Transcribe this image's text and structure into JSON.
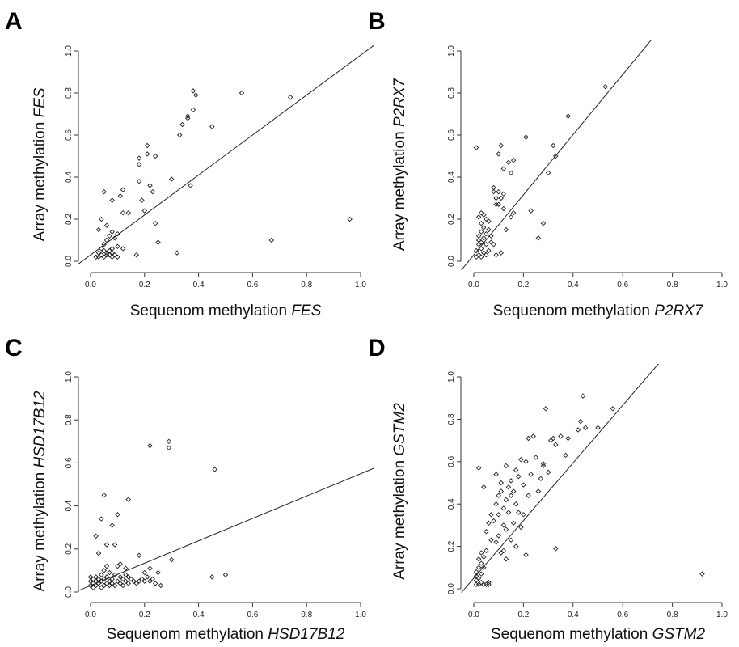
{
  "chart_data": [
    {
      "type": "scatter",
      "panel_label": "A",
      "xlabel_prefix": "Sequenom methylation ",
      "gene": "FES",
      "ylabel_prefix": "Array methylation ",
      "xlim": [
        0,
        1
      ],
      "ylim": [
        0,
        1
      ],
      "xticks": [
        "0.0",
        "0.2",
        "0.4",
        "0.6",
        "0.8",
        "1.0"
      ],
      "yticks": [
        "0.0",
        "0.2",
        "0.4",
        "0.6",
        "0.8",
        "1.0"
      ],
      "fit_line": {
        "intercept": 0.03,
        "slope": 0.95
      },
      "points": [
        [
          0.02,
          0.02
        ],
        [
          0.03,
          0.04
        ],
        [
          0.03,
          0.02
        ],
        [
          0.04,
          0.03
        ],
        [
          0.04,
          0.06
        ],
        [
          0.05,
          0.02
        ],
        [
          0.05,
          0.05
        ],
        [
          0.06,
          0.03
        ],
        [
          0.06,
          0.04
        ],
        [
          0.07,
          0.05
        ],
        [
          0.07,
          0.03
        ],
        [
          0.08,
          0.02
        ],
        [
          0.08,
          0.04
        ],
        [
          0.09,
          0.03
        ],
        [
          0.1,
          0.02
        ],
        [
          0.05,
          0.08
        ],
        [
          0.06,
          0.1
        ],
        [
          0.07,
          0.12
        ],
        [
          0.08,
          0.14
        ],
        [
          0.09,
          0.11
        ],
        [
          0.1,
          0.13
        ],
        [
          0.04,
          0.2
        ],
        [
          0.06,
          0.17
        ],
        [
          0.08,
          0.06
        ],
        [
          0.1,
          0.07
        ],
        [
          0.03,
          0.15
        ],
        [
          0.05,
          0.33
        ],
        [
          0.08,
          0.29
        ],
        [
          0.11,
          0.31
        ],
        [
          0.12,
          0.34
        ],
        [
          0.12,
          0.23
        ],
        [
          0.12,
          0.06
        ],
        [
          0.14,
          0.23
        ],
        [
          0.17,
          0.03
        ],
        [
          0.18,
          0.49
        ],
        [
          0.18,
          0.46
        ],
        [
          0.18,
          0.38
        ],
        [
          0.19,
          0.29
        ],
        [
          0.2,
          0.24
        ],
        [
          0.21,
          0.55
        ],
        [
          0.21,
          0.51
        ],
        [
          0.22,
          0.36
        ],
        [
          0.23,
          0.33
        ],
        [
          0.24,
          0.18
        ],
        [
          0.24,
          0.5
        ],
        [
          0.25,
          0.09
        ],
        [
          0.3,
          0.39
        ],
        [
          0.32,
          0.04
        ],
        [
          0.33,
          0.6
        ],
        [
          0.34,
          0.65
        ],
        [
          0.36,
          0.68
        ],
        [
          0.36,
          0.69
        ],
        [
          0.37,
          0.36
        ],
        [
          0.38,
          0.81
        ],
        [
          0.38,
          0.72
        ],
        [
          0.39,
          0.79
        ],
        [
          0.45,
          0.64
        ],
        [
          0.56,
          0.8
        ],
        [
          0.67,
          0.1
        ],
        [
          0.74,
          0.78
        ],
        [
          0.96,
          0.2
        ]
      ]
    },
    {
      "type": "scatter",
      "panel_label": "B",
      "xlabel_prefix": "Sequenom methylation ",
      "gene": "P2RX7",
      "ylabel_prefix": "Array methylation ",
      "xlim": [
        0,
        1
      ],
      "ylim": [
        0,
        1
      ],
      "xticks": [
        "0.0",
        "0.2",
        "0.4",
        "0.6",
        "0.8",
        "1.0"
      ],
      "yticks": [
        "0.0",
        "0.2",
        "0.4",
        "0.6",
        "0.8",
        "1.0"
      ],
      "fit_line": {
        "intercept": 0.03,
        "slope": 1.43
      },
      "points": [
        [
          0.01,
          0.02
        ],
        [
          0.01,
          0.05
        ],
        [
          0.02,
          0.03
        ],
        [
          0.02,
          0.08
        ],
        [
          0.02,
          0.1
        ],
        [
          0.02,
          0.12
        ],
        [
          0.03,
          0.02
        ],
        [
          0.03,
          0.06
        ],
        [
          0.03,
          0.09
        ],
        [
          0.03,
          0.14
        ],
        [
          0.03,
          0.18
        ],
        [
          0.04,
          0.04
        ],
        [
          0.04,
          0.11
        ],
        [
          0.04,
          0.16
        ],
        [
          0.04,
          0.22
        ],
        [
          0.05,
          0.03
        ],
        [
          0.05,
          0.08
        ],
        [
          0.05,
          0.13
        ],
        [
          0.05,
          0.2
        ],
        [
          0.06,
          0.05
        ],
        [
          0.06,
          0.15
        ],
        [
          0.06,
          0.19
        ],
        [
          0.02,
          0.21
        ],
        [
          0.03,
          0.23
        ],
        [
          0.01,
          0.54
        ],
        [
          0.07,
          0.09
        ],
        [
          0.07,
          0.12
        ],
        [
          0.08,
          0.08
        ],
        [
          0.08,
          0.35
        ],
        [
          0.08,
          0.33
        ],
        [
          0.09,
          0.3
        ],
        [
          0.09,
          0.27
        ],
        [
          0.09,
          0.03
        ],
        [
          0.1,
          0.33
        ],
        [
          0.1,
          0.51
        ],
        [
          0.1,
          0.27
        ],
        [
          0.11,
          0.55
        ],
        [
          0.11,
          0.3
        ],
        [
          0.11,
          0.04
        ],
        [
          0.12,
          0.32
        ],
        [
          0.12,
          0.44
        ],
        [
          0.12,
          0.25
        ],
        [
          0.13,
          0.15
        ],
        [
          0.14,
          0.47
        ],
        [
          0.15,
          0.42
        ],
        [
          0.15,
          0.21
        ],
        [
          0.16,
          0.48
        ],
        [
          0.16,
          0.23
        ],
        [
          0.21,
          0.59
        ],
        [
          0.23,
          0.24
        ],
        [
          0.26,
          0.11
        ],
        [
          0.28,
          0.18
        ],
        [
          0.3,
          0.42
        ],
        [
          0.32,
          0.55
        ],
        [
          0.33,
          0.5
        ],
        [
          0.38,
          0.69
        ],
        [
          0.53,
          0.83
        ]
      ]
    },
    {
      "type": "scatter",
      "panel_label": "C",
      "xlabel_prefix": "Sequenom methylation ",
      "gene": "HSD17B12",
      "ylabel_prefix": "Array methylation ",
      "xlim": [
        0,
        1
      ],
      "ylim": [
        0,
        1
      ],
      "xticks": [
        "0.0",
        "0.2",
        "0.4",
        "0.6",
        "0.8",
        "1.0"
      ],
      "yticks": [
        "0.0",
        "0.2",
        "0.4",
        "0.6",
        "0.8",
        "1.0"
      ],
      "fit_line": {
        "intercept": 0.03,
        "slope": 0.52
      },
      "points": [
        [
          0.0,
          0.03
        ],
        [
          0.0,
          0.05
        ],
        [
          0.0,
          0.07
        ],
        [
          0.01,
          0.02
        ],
        [
          0.01,
          0.04
        ],
        [
          0.01,
          0.06
        ],
        [
          0.02,
          0.03
        ],
        [
          0.02,
          0.05
        ],
        [
          0.02,
          0.07
        ],
        [
          0.03,
          0.04
        ],
        [
          0.03,
          0.06
        ],
        [
          0.04,
          0.02
        ],
        [
          0.04,
          0.05
        ],
        [
          0.04,
          0.08
        ],
        [
          0.05,
          0.03
        ],
        [
          0.05,
          0.06
        ],
        [
          0.05,
          0.1
        ],
        [
          0.06,
          0.04
        ],
        [
          0.06,
          0.07
        ],
        [
          0.06,
          0.12
        ],
        [
          0.07,
          0.03
        ],
        [
          0.07,
          0.05
        ],
        [
          0.07,
          0.09
        ],
        [
          0.08,
          0.04
        ],
        [
          0.08,
          0.06
        ],
        [
          0.09,
          0.03
        ],
        [
          0.09,
          0.08
        ],
        [
          0.1,
          0.05
        ],
        [
          0.1,
          0.12
        ],
        [
          0.11,
          0.04
        ],
        [
          0.11,
          0.07
        ],
        [
          0.12,
          0.06
        ],
        [
          0.12,
          0.03
        ],
        [
          0.13,
          0.05
        ],
        [
          0.13,
          0.08
        ],
        [
          0.14,
          0.04
        ],
        [
          0.14,
          0.07
        ],
        [
          0.15,
          0.06
        ],
        [
          0.16,
          0.05
        ],
        [
          0.17,
          0.04
        ],
        [
          0.18,
          0.05
        ],
        [
          0.18,
          0.17
        ],
        [
          0.19,
          0.06
        ],
        [
          0.2,
          0.05
        ],
        [
          0.2,
          0.09
        ],
        [
          0.21,
          0.07
        ],
        [
          0.22,
          0.11
        ],
        [
          0.22,
          0.05
        ],
        [
          0.23,
          0.06
        ],
        [
          0.24,
          0.04
        ],
        [
          0.25,
          0.09
        ],
        [
          0.26,
          0.03
        ],
        [
          0.29,
          0.7
        ],
        [
          0.29,
          0.67
        ],
        [
          0.3,
          0.15
        ],
        [
          0.22,
          0.68
        ],
        [
          0.14,
          0.43
        ],
        [
          0.1,
          0.36
        ],
        [
          0.09,
          0.22
        ],
        [
          0.05,
          0.45
        ],
        [
          0.04,
          0.34
        ],
        [
          0.02,
          0.26
        ],
        [
          0.03,
          0.18
        ],
        [
          0.06,
          0.22
        ],
        [
          0.11,
          0.13
        ],
        [
          0.13,
          0.11
        ],
        [
          0.08,
          0.31
        ],
        [
          0.46,
          0.57
        ],
        [
          0.45,
          0.07
        ],
        [
          0.5,
          0.08
        ]
      ]
    },
    {
      "type": "scatter",
      "panel_label": "D",
      "xlabel_prefix": "Sequenom methylation ",
      "gene": "GSTM2",
      "ylabel_prefix": "Array methylation ",
      "xlim": [
        0,
        1
      ],
      "ylim": [
        0,
        1
      ],
      "xticks": [
        "0.0",
        "0.2",
        "0.4",
        "0.6",
        "0.8",
        "1.0"
      ],
      "yticks": [
        "0.0",
        "0.2",
        "0.4",
        "0.6",
        "0.8",
        "1.0"
      ],
      "fit_line": {
        "intercept": 0.05,
        "slope": 1.36
      },
      "points": [
        [
          0.01,
          0.02
        ],
        [
          0.01,
          0.04
        ],
        [
          0.01,
          0.06
        ],
        [
          0.01,
          0.08
        ],
        [
          0.02,
          0.02
        ],
        [
          0.02,
          0.05
        ],
        [
          0.02,
          0.1
        ],
        [
          0.02,
          0.14
        ],
        [
          0.02,
          0.57
        ],
        [
          0.03,
          0.03
        ],
        [
          0.03,
          0.07
        ],
        [
          0.03,
          0.12
        ],
        [
          0.03,
          0.17
        ],
        [
          0.04,
          0.02
        ],
        [
          0.04,
          0.1
        ],
        [
          0.04,
          0.15
        ],
        [
          0.04,
          0.48
        ],
        [
          0.05,
          0.02
        ],
        [
          0.05,
          0.18
        ],
        [
          0.05,
          0.27
        ],
        [
          0.06,
          0.02
        ],
        [
          0.06,
          0.03
        ],
        [
          0.06,
          0.31
        ],
        [
          0.07,
          0.35
        ],
        [
          0.07,
          0.23
        ],
        [
          0.08,
          0.32
        ],
        [
          0.09,
          0.54
        ],
        [
          0.09,
          0.4
        ],
        [
          0.09,
          0.22
        ],
        [
          0.1,
          0.44
        ],
        [
          0.1,
          0.35
        ],
        [
          0.1,
          0.25
        ],
        [
          0.11,
          0.5
        ],
        [
          0.11,
          0.46
        ],
        [
          0.11,
          0.17
        ],
        [
          0.12,
          0.38
        ],
        [
          0.12,
          0.3
        ],
        [
          0.12,
          0.18
        ],
        [
          0.13,
          0.58
        ],
        [
          0.13,
          0.42
        ],
        [
          0.13,
          0.28
        ],
        [
          0.13,
          0.14
        ],
        [
          0.14,
          0.48
        ],
        [
          0.14,
          0.36
        ],
        [
          0.15,
          0.51
        ],
        [
          0.15,
          0.44
        ],
        [
          0.15,
          0.23
        ],
        [
          0.16,
          0.46
        ],
        [
          0.16,
          0.31
        ],
        [
          0.17,
          0.56
        ],
        [
          0.17,
          0.4
        ],
        [
          0.17,
          0.2
        ],
        [
          0.18,
          0.53
        ],
        [
          0.18,
          0.36
        ],
        [
          0.19,
          0.61
        ],
        [
          0.19,
          0.29
        ],
        [
          0.2,
          0.49
        ],
        [
          0.2,
          0.35
        ],
        [
          0.21,
          0.6
        ],
        [
          0.21,
          0.16
        ],
        [
          0.22,
          0.71
        ],
        [
          0.22,
          0.44
        ],
        [
          0.23,
          0.54
        ],
        [
          0.24,
          0.72
        ],
        [
          0.25,
          0.62
        ],
        [
          0.26,
          0.46
        ],
        [
          0.27,
          0.52
        ],
        [
          0.28,
          0.59
        ],
        [
          0.28,
          0.58
        ],
        [
          0.29,
          0.85
        ],
        [
          0.3,
          0.55
        ],
        [
          0.31,
          0.7
        ],
        [
          0.32,
          0.71
        ],
        [
          0.33,
          0.19
        ],
        [
          0.33,
          0.68
        ],
        [
          0.35,
          0.72
        ],
        [
          0.37,
          0.63
        ],
        [
          0.38,
          0.71
        ],
        [
          0.42,
          0.75
        ],
        [
          0.43,
          0.79
        ],
        [
          0.44,
          0.91
        ],
        [
          0.45,
          0.76
        ],
        [
          0.5,
          0.76
        ],
        [
          0.56,
          0.85
        ],
        [
          0.92,
          0.07
        ]
      ]
    }
  ]
}
